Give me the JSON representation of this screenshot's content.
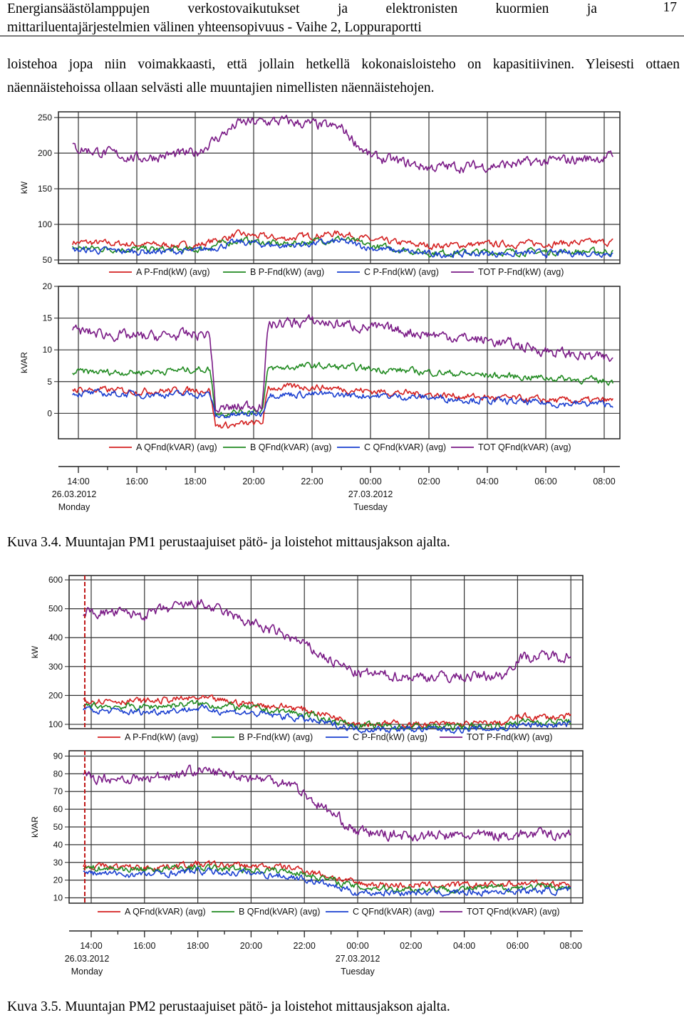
{
  "header": {
    "title_line1_words": [
      "Energiansäästölamppujen",
      "verkostovaikutukset",
      "ja",
      "elektronisten",
      "kuormien",
      "ja"
    ],
    "title_line2": "mittariluentajärjestelmien välinen yhteensopivuus - Vaihe 2, Loppuraportti",
    "page_number": "17"
  },
  "paragraph": "loistehoa jopa niin voimakkaasti, että jollain hetkellä kokonaisloisteho on kapasitiivinen. Yleisesti ottaen näennäistehoissa ollaan selvästi alle muuntajien nimellisten näennäistehojen.",
  "colors": {
    "A": "#d42020",
    "B": "#208a20",
    "C": "#1a3fd0",
    "TOT": "#7a1a86",
    "grid": "#333333"
  },
  "figures": [
    {
      "caption": "Kuva 3.4. Muuntajan PM1 perustaajuiset pätö- ja loistehot mittausjakson ajalta.",
      "time_axis": {
        "ticks": [
          "14:00",
          "16:00",
          "18:00",
          "20:00",
          "22:00",
          "00:00",
          "02:00",
          "04:00",
          "06:00",
          "08:00"
        ],
        "dates": [
          {
            "date": "26.03.2012",
            "day": "Monday"
          },
          {
            "date": "27.03.2012",
            "day": "Tuesday"
          }
        ]
      },
      "chart_data": [
        {
          "type": "line",
          "ylabel": "kW",
          "ylim": [
            45,
            258
          ],
          "yticks": [
            50,
            100,
            150,
            200,
            250
          ],
          "x_hours": [
            13.8,
            16.0,
            18.0,
            19.5,
            21.0,
            23.0,
            24.0,
            26.0,
            28.0,
            32.3
          ],
          "legend": [
            "A P-Fnd(kW) (avg)",
            "B P-Fnd(kW) (avg)",
            "C P-Fnd(kW) (avg)",
            "TOT P-Fnd(kW) (avg)"
          ],
          "series": [
            {
              "name": "A P-Fnd(kW) (avg)",
              "key": "A",
              "values": [
                75,
                72,
                70,
                86,
                80,
                88,
                78,
                70,
                72,
                75
              ]
            },
            {
              "name": "B P-Fnd(kW) (avg)",
              "key": "B",
              "values": [
                67,
                65,
                64,
                78,
                72,
                80,
                70,
                60,
                61,
                62
              ]
            },
            {
              "name": "C P-Fnd(kW) (avg)",
              "key": "C",
              "values": [
                64,
                62,
                62,
                75,
                70,
                76,
                67,
                58,
                59,
                60
              ]
            },
            {
              "name": "TOT P-Fnd(kW) (avg)",
              "key": "TOT",
              "values": [
                208,
                193,
                200,
                242,
                245,
                235,
                195,
                180,
                182,
                195
              ]
            }
          ]
        },
        {
          "type": "line",
          "ylabel": "kVAR",
          "ylim": [
            -4,
            20
          ],
          "yticks": [
            0,
            5,
            10,
            15,
            20
          ],
          "x_hours": [
            13.8,
            16.0,
            18.5,
            18.7,
            20.3,
            20.5,
            22.0,
            24.0,
            26.0,
            28.0,
            30.5,
            32.3
          ],
          "legend": [
            "A QFnd(kVAR) (avg)",
            "B QFnd(kVAR) (avg)",
            "C QFnd(kVAR) (avg)",
            "TOT QFnd(kVAR) (avg)"
          ],
          "series": [
            {
              "name": "A QFnd(kVAR) (avg)",
              "key": "A",
              "values": [
                3.8,
                3.5,
                3.7,
                -2.0,
                -1.5,
                4.0,
                4.2,
                3.5,
                3.0,
                2.5,
                2.0,
                2.0
              ]
            },
            {
              "name": "B QFnd(kVAR) (avg)",
              "key": "B",
              "values": [
                6.5,
                6.5,
                7.0,
                0.0,
                0.5,
                7.0,
                7.5,
                7.0,
                6.5,
                6.0,
                5.5,
                5.0
              ]
            },
            {
              "name": "C QFnd(kVAR) (avg)",
              "key": "C",
              "values": [
                3.2,
                3.0,
                3.0,
                -0.5,
                0.0,
                3.0,
                3.0,
                2.8,
                2.5,
                2.0,
                1.5,
                1.5
              ]
            },
            {
              "name": "TOT QFnd(kVAR) (avg)",
              "key": "TOT",
              "values": [
                13.0,
                12.0,
                12.5,
                0.5,
                1.5,
                14.0,
                14.5,
                13.5,
                12.5,
                11.5,
                9.5,
                8.5
              ]
            }
          ]
        }
      ]
    },
    {
      "caption": "Kuva 3.5. Muuntajan PM2 perustaajuiset pätö- ja loistehot mittausjakson ajalta.",
      "time_axis": {
        "ticks": [
          "14:00",
          "16:00",
          "18:00",
          "20:00",
          "22:00",
          "00:00",
          "02:00",
          "04:00",
          "06:00",
          "08:00"
        ],
        "dates": [
          {
            "date": "26.03.2012",
            "day": "Monday"
          },
          {
            "date": "27.03.2012",
            "day": "Tuesday"
          }
        ]
      },
      "chart_data": [
        {
          "type": "line",
          "ylabel": "kW",
          "ylim": [
            85,
            615
          ],
          "yticks": [
            100,
            200,
            300,
            400,
            500,
            600
          ],
          "x_hours": [
            13.7,
            16.0,
            18.0,
            20.0,
            21.5,
            23.0,
            24.0,
            26.0,
            28.0,
            29.5,
            30.0,
            32.0
          ],
          "legend": [
            "A P-Fnd(kW) (avg)",
            "B P-Fnd(kW) (avg)",
            "C P-Fnd(kW) (avg)",
            "TOT P-Fnd(kW) (avg)"
          ],
          "series": [
            {
              "name": "A P-Fnd(kW) (avg)",
              "key": "A",
              "values": [
                185,
                180,
                190,
                170,
                160,
                130,
                105,
                100,
                100,
                105,
                125,
                125
              ]
            },
            {
              "name": "B P-Fnd(kW) (avg)",
              "key": "B",
              "values": [
                165,
                160,
                172,
                155,
                142,
                115,
                95,
                92,
                92,
                95,
                110,
                110
              ]
            },
            {
              "name": "C P-Fnd(kW) (avg)",
              "key": "C",
              "values": [
                148,
                142,
                155,
                138,
                125,
                100,
                85,
                83,
                83,
                85,
                98,
                98
              ]
            },
            {
              "name": "TOT P-Fnd(kW) (avg)",
              "key": "TOT",
              "values": [
                490,
                480,
                520,
                450,
                400,
                320,
                275,
                265,
                265,
                270,
                330,
                340
              ]
            }
          ]
        },
        {
          "type": "line",
          "ylabel": "kVAR",
          "ylim": [
            7,
            93
          ],
          "yticks": [
            10,
            20,
            30,
            40,
            50,
            60,
            70,
            80,
            90
          ],
          "x_hours": [
            13.7,
            16.0,
            18.0,
            20.0,
            21.5,
            22.2,
            23.0,
            24.0,
            26.0,
            28.0,
            30.0,
            32.0
          ],
          "legend": [
            "A QFnd(kVAR) (avg)",
            "B QFnd(kVAR) (avg)",
            "C QFnd(kVAR) (avg)",
            "TOT QFnd(kVAR) (avg)"
          ],
          "series": [
            {
              "name": "A QFnd(kVAR) (avg)",
              "key": "A",
              "values": [
                28,
                27,
                29,
                28,
                27,
                25,
                22,
                18,
                17,
                17,
                18,
                18
              ]
            },
            {
              "name": "B QFnd(kVAR) (avg)",
              "key": "B",
              "values": [
                27,
                26,
                27,
                26,
                25,
                23,
                20,
                16,
                15,
                15,
                16,
                16
              ]
            },
            {
              "name": "C QFnd(kVAR) (avg)",
              "key": "C",
              "values": [
                24,
                23,
                25,
                24,
                22,
                20,
                17,
                13,
                13,
                13,
                14,
                14
              ]
            },
            {
              "name": "TOT QFnd(kVAR) (avg)",
              "key": "TOT",
              "values": [
                78,
                77,
                82,
                78,
                75,
                66,
                58,
                47,
                45,
                45,
                46,
                46
              ]
            }
          ]
        }
      ]
    }
  ]
}
